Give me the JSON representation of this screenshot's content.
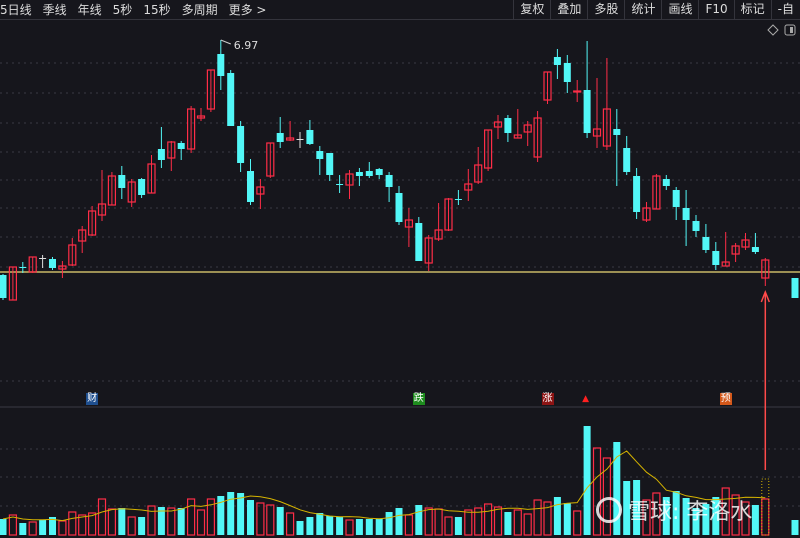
{
  "toolbar": {
    "periods": [
      "5日线",
      "季线",
      "年线",
      "5秒",
      "15秒",
      "多周期",
      "更多 >"
    ],
    "actions": [
      "复权",
      "叠加",
      "多股",
      "统计",
      "画线",
      "F10",
      "标记",
      "-自"
    ]
  },
  "icons": {
    "diamond": "diamond-icon",
    "panel": "panel-toggle-icon"
  },
  "price_chart": {
    "high_label": "6.97",
    "reference_price": 4.65,
    "colors": {
      "up": "#ff2d47",
      "down": "#52f7f7",
      "doji": "#dddddd",
      "reference": "#c9b866",
      "volume_ma": "#d6b400",
      "arrow": "#ff4a4a",
      "background": "#16161c"
    },
    "candles": [
      [
        4.62,
        4.63,
        4.37,
        4.39,
        16
      ],
      [
        4.37,
        4.7,
        4.37,
        4.7,
        20
      ],
      [
        4.7,
        4.75,
        4.64,
        4.69,
        12
      ],
      [
        4.65,
        4.8,
        4.64,
        4.8,
        13
      ],
      [
        4.79,
        4.82,
        4.69,
        4.79,
        15
      ],
      [
        4.78,
        4.8,
        4.67,
        4.69,
        18
      ],
      [
        4.68,
        4.76,
        4.59,
        4.71,
        14
      ],
      [
        4.72,
        4.99,
        4.71,
        4.92,
        23
      ],
      [
        4.96,
        5.11,
        4.84,
        5.07,
        20
      ],
      [
        5.02,
        5.31,
        5.01,
        5.26,
        22
      ],
      [
        5.22,
        5.67,
        5.16,
        5.33,
        36
      ],
      [
        5.32,
        5.65,
        5.32,
        5.61,
        26
      ],
      [
        5.62,
        5.71,
        5.38,
        5.49,
        27
      ],
      [
        5.35,
        5.58,
        5.3,
        5.55,
        18
      ],
      [
        5.58,
        5.59,
        5.39,
        5.42,
        18
      ],
      [
        5.44,
        5.82,
        5.44,
        5.73,
        29
      ],
      [
        5.88,
        6.1,
        5.69,
        5.77,
        28
      ],
      [
        5.79,
        5.96,
        5.66,
        5.95,
        27
      ],
      [
        5.94,
        5.96,
        5.77,
        5.88,
        27
      ],
      [
        5.88,
        6.31,
        5.84,
        6.28,
        36
      ],
      [
        6.19,
        6.29,
        6.16,
        6.21,
        25
      ],
      [
        6.28,
        6.67,
        6.25,
        6.67,
        36
      ],
      [
        6.83,
        6.97,
        6.47,
        6.61,
        39
      ],
      [
        6.64,
        6.67,
        6.11,
        6.11,
        43
      ],
      [
        6.11,
        6.16,
        5.65,
        5.74,
        42
      ],
      [
        5.66,
        5.78,
        5.32,
        5.35,
        35
      ],
      [
        5.43,
        5.58,
        5.28,
        5.5,
        32
      ],
      [
        5.61,
        5.94,
        5.59,
        5.94,
        30
      ],
      [
        6.04,
        6.2,
        5.89,
        5.95,
        28
      ],
      [
        5.97,
        6.16,
        5.96,
        5.99,
        22
      ],
      [
        5.98,
        6.05,
        5.89,
        5.98,
        14
      ],
      [
        6.07,
        6.17,
        5.92,
        5.93,
        18
      ],
      [
        5.86,
        5.91,
        5.62,
        5.78,
        22
      ],
      [
        5.84,
        5.84,
        5.56,
        5.62,
        19
      ],
      [
        5.53,
        5.62,
        5.44,
        5.52,
        18
      ],
      [
        5.52,
        5.67,
        5.38,
        5.63,
        15
      ],
      [
        5.65,
        5.69,
        5.51,
        5.61,
        16
      ],
      [
        5.66,
        5.75,
        5.59,
        5.61,
        16
      ],
      [
        5.68,
        5.69,
        5.58,
        5.62,
        16
      ],
      [
        5.62,
        5.65,
        5.35,
        5.5,
        23
      ],
      [
        5.44,
        5.51,
        5.12,
        5.15,
        27
      ],
      [
        5.1,
        5.29,
        4.9,
        5.17,
        20
      ],
      [
        5.14,
        5.2,
        4.76,
        4.76,
        30
      ],
      [
        4.74,
        5.02,
        4.66,
        4.99,
        27
      ],
      [
        4.98,
        5.34,
        4.96,
        5.07,
        26
      ],
      [
        5.07,
        5.39,
        5.06,
        5.38,
        18
      ],
      [
        5.38,
        5.47,
        5.32,
        5.37,
        18
      ],
      [
        5.47,
        5.68,
        5.36,
        5.53,
        25
      ],
      [
        5.55,
        5.9,
        5.53,
        5.72,
        27
      ],
      [
        5.69,
        6.07,
        5.66,
        6.07,
        31
      ],
      [
        6.1,
        6.22,
        5.98,
        6.15,
        28
      ],
      [
        6.19,
        6.22,
        5.95,
        6.04,
        23
      ],
      [
        5.99,
        6.28,
        5.99,
        6.02,
        25
      ],
      [
        6.05,
        6.16,
        5.91,
        6.12,
        21
      ],
      [
        5.8,
        6.26,
        5.75,
        6.19,
        35
      ],
      [
        6.37,
        6.65,
        6.33,
        6.65,
        33
      ],
      [
        6.8,
        6.88,
        6.58,
        6.72,
        38
      ],
      [
        6.74,
        6.82,
        6.44,
        6.55,
        32
      ],
      [
        6.45,
        6.57,
        6.35,
        6.46,
        24
      ],
      [
        6.47,
        6.96,
        5.99,
        6.04,
        109
      ],
      [
        6.01,
        6.59,
        5.89,
        6.08,
        87
      ],
      [
        5.91,
        6.79,
        5.87,
        6.28,
        77
      ],
      [
        6.08,
        6.28,
        5.51,
        6.02,
        93
      ],
      [
        5.89,
        6.01,
        5.62,
        5.65,
        54
      ],
      [
        5.61,
        5.69,
        5.18,
        5.25,
        55
      ],
      [
        5.17,
        5.35,
        5.15,
        5.29,
        35
      ],
      [
        5.28,
        5.63,
        5.28,
        5.61,
        42
      ],
      [
        5.58,
        5.62,
        5.47,
        5.51,
        38
      ],
      [
        5.47,
        5.5,
        5.17,
        5.3,
        44
      ],
      [
        5.29,
        5.47,
        4.91,
        5.17,
        37
      ],
      [
        5.16,
        5.22,
        5.0,
        5.06,
        27
      ],
      [
        5.0,
        5.13,
        4.84,
        4.87,
        31
      ],
      [
        4.86,
        4.95,
        4.67,
        4.72,
        38
      ],
      [
        4.71,
        5.05,
        4.71,
        4.75,
        47
      ],
      [
        4.83,
        4.94,
        4.75,
        4.91,
        40
      ],
      [
        4.9,
        5.04,
        4.87,
        4.97,
        33
      ],
      [
        4.9,
        5.04,
        4.83,
        4.85,
        30
      ],
      [
        4.59,
        4.79,
        4.51,
        4.77,
        36
      ],
      null,
      null,
      [
        4.59,
        4.59,
        4.39,
        4.39,
        15
      ]
    ],
    "projected_volume": 56
  },
  "event_markers": [
    {
      "label": "财",
      "color": "#1f4f8f",
      "candle": 9
    },
    {
      "label": "跌",
      "color": "#1e8c1e",
      "candle": 42
    },
    {
      "label": "涨",
      "color": "#8c1414",
      "candle": 55
    },
    {
      "label": "▲",
      "color": "#ff2020",
      "candle": 59
    },
    {
      "label": "预",
      "color": "#d4581a",
      "candle": 73
    }
  ],
  "watermark": "雪球: 李洛水"
}
